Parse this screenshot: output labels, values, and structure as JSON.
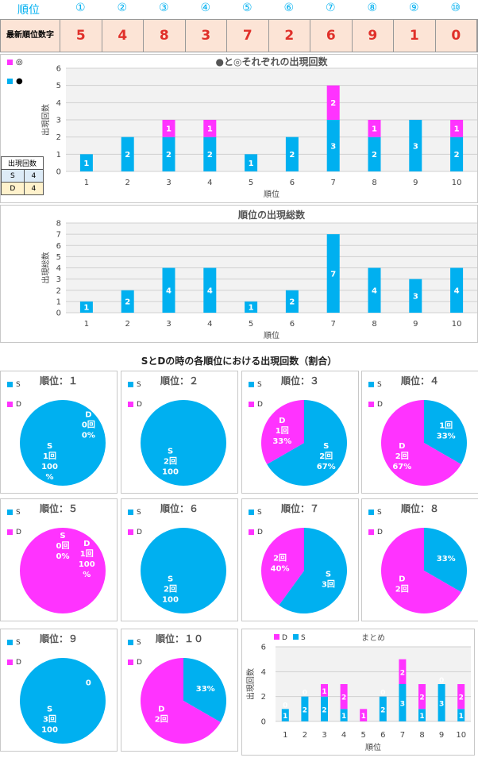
{
  "header": {
    "label": "順位",
    "circled": [
      "①",
      "②",
      "③",
      "④",
      "⑤",
      "⑥",
      "⑦",
      "⑧",
      "⑨",
      "⑩"
    ]
  },
  "latest": {
    "label": "最新順位数字",
    "digits": [
      "5",
      "4",
      "8",
      "3",
      "7",
      "2",
      "6",
      "9",
      "1",
      "0"
    ]
  },
  "legend_small": {
    "ring": "◎",
    "dot": "●"
  },
  "side_table": {
    "header": "出現回数",
    "rows": [
      [
        "S",
        "4"
      ],
      [
        "D",
        "4"
      ]
    ]
  },
  "pie_section_title": "SとDの時の各順位における出現回数（割合）",
  "colors": {
    "cyan": "#00b0f0",
    "magenta": "#ff33ff",
    "header_bg": "#fce4d6",
    "digit_red": "#e0302a"
  },
  "chart_data": [
    {
      "type": "bar",
      "title": "●と◎それぞれの出現回数",
      "xlabel": "順位",
      "ylabel": "出現回数",
      "categories": [
        "1",
        "2",
        "3",
        "4",
        "5",
        "6",
        "7",
        "8",
        "9",
        "10"
      ],
      "ylim": [
        0,
        6
      ],
      "yticks": [
        "0",
        "1",
        "2",
        "3",
        "4",
        "5",
        "6"
      ],
      "series": [
        {
          "name": "●",
          "color": "#00b0f0",
          "values": [
            1,
            2,
            2,
            2,
            1,
            2,
            3,
            2,
            3,
            2
          ]
        },
        {
          "name": "◎",
          "color": "#ff33ff",
          "values": [
            0,
            0,
            1,
            1,
            0,
            0,
            2,
            1,
            0,
            1
          ]
        }
      ]
    },
    {
      "type": "bar",
      "title": "順位の出現総数",
      "xlabel": "順位",
      "ylabel": "出現総数",
      "categories": [
        "1",
        "2",
        "3",
        "4",
        "5",
        "6",
        "7",
        "8",
        "9",
        "10"
      ],
      "ylim": [
        0,
        8
      ],
      "yticks": [
        "0",
        "1",
        "2",
        "3",
        "4",
        "5",
        "6",
        "7",
        "8"
      ],
      "series": [
        {
          "color": "#00b0f0",
          "values": [
            1,
            2,
            4,
            4,
            1,
            2,
            7,
            4,
            3,
            4
          ]
        }
      ]
    },
    {
      "type": "pie",
      "pies": [
        {
          "title": "順位：１",
          "S": 1,
          "D": 0,
          "S_label": [
            "S",
            "1回",
            "100",
            "%"
          ],
          "D_label": [
            "D",
            "0回",
            "0%"
          ]
        },
        {
          "title": "順位：２",
          "S": 2,
          "D": 0,
          "S_label": [
            "S",
            "2回",
            "100"
          ],
          "D_label": []
        },
        {
          "title": "順位：３",
          "S": 2,
          "D": 1,
          "S_label": [
            "S",
            "2回",
            "67%"
          ],
          "D_label": [
            "D",
            "1回",
            "33%"
          ]
        },
        {
          "title": "順位：４",
          "S": 1,
          "D": 2,
          "S_label": [
            "1回",
            "33%"
          ],
          "D_label": [
            "D",
            "2回",
            "67%"
          ]
        },
        {
          "title": "順位：５",
          "S": 0,
          "D": 1,
          "S_label": [
            "S",
            "0回",
            "0%"
          ],
          "D_label": [
            "D",
            "1回",
            "100",
            "%"
          ]
        },
        {
          "title": "順位：６",
          "S": 2,
          "D": 0,
          "S_label": [
            "S",
            "2回",
            "100"
          ],
          "D_label": []
        },
        {
          "title": "順位：７",
          "S": 3,
          "D": 2,
          "S_label": [
            "S",
            "3回"
          ],
          "D_label": [
            "2回",
            "40%"
          ]
        },
        {
          "title": "順位：８",
          "S": 1,
          "D": 2,
          "S_label": [
            "33%"
          ],
          "D_label": [
            "D",
            "2回"
          ]
        },
        {
          "title": "順位：９",
          "S": 3,
          "D": 0,
          "S_label": [
            "S",
            "3回",
            "100"
          ],
          "D_label": [
            "0"
          ]
        },
        {
          "title": "順位：１０",
          "S": 1,
          "D": 2,
          "S_label": [
            "33%"
          ],
          "D_label": [
            "D",
            "2回"
          ]
        }
      ],
      "legend": [
        "S",
        "D"
      ]
    },
    {
      "type": "bar",
      "title": "まとめ",
      "xlabel": "順位",
      "ylabel": "出現回数",
      "categories": [
        "1",
        "2",
        "3",
        "4",
        "5",
        "6",
        "7",
        "8",
        "9",
        "10"
      ],
      "ylim": [
        0,
        6
      ],
      "yticks": [
        "0",
        "2",
        "4",
        "6"
      ],
      "legend": [
        "D",
        "S"
      ],
      "series": [
        {
          "name": "S",
          "color": "#00b0f0",
          "values": [
            1,
            2,
            2,
            1,
            0,
            2,
            3,
            1,
            3,
            1
          ]
        },
        {
          "name": "D",
          "color": "#ff33ff",
          "values": [
            0,
            0,
            1,
            2,
            1,
            0,
            2,
            2,
            0,
            2
          ]
        }
      ]
    }
  ]
}
